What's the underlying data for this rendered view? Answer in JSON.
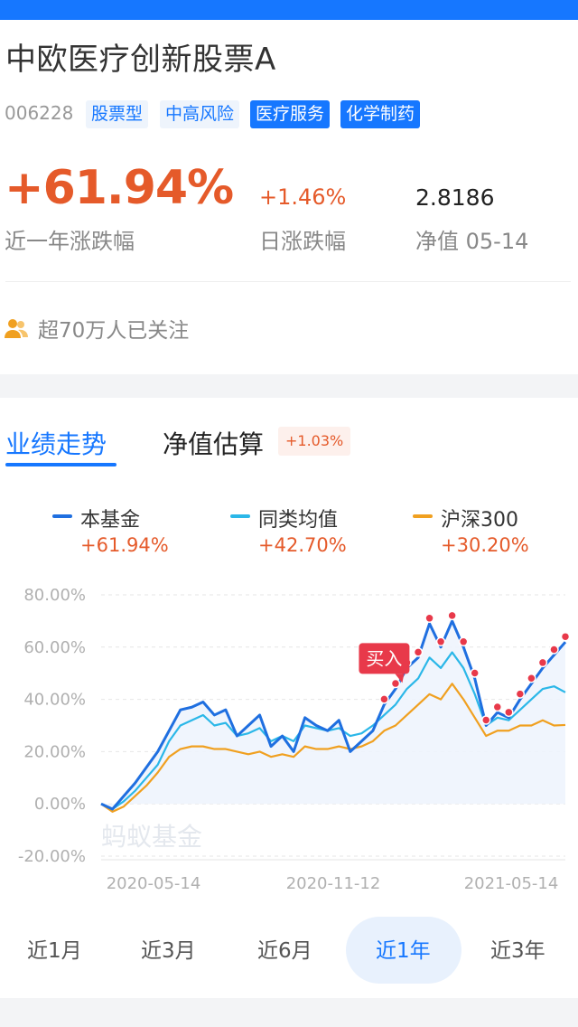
{
  "fund": {
    "name": "中欧医疗创新股票A",
    "code": "006228",
    "tags": [
      "股票型",
      "中高风险",
      "医疗服务",
      "化学制药"
    ]
  },
  "stats": {
    "year_return": "+61.94%",
    "year_return_label": "近一年涨跌幅",
    "day_return": "+1.46%",
    "day_return_label": "日涨跌幅",
    "nav": "2.8186",
    "nav_label": "净值 05-14"
  },
  "followers": "超70万人已关注",
  "tabs": {
    "performance": "业绩走势",
    "estimate": "净值估算",
    "estimate_badge": "+1.03%"
  },
  "legend": [
    {
      "name": "本基金",
      "value": "+61.94%",
      "color": "#1f6fe0"
    },
    {
      "name": "同类均值",
      "value": "+42.70%",
      "color": "#2bb7e8"
    },
    {
      "name": "沪深300",
      "value": "+30.20%",
      "color": "#f0a020"
    }
  ],
  "chart_data": {
    "type": "line",
    "y_ticks": [
      "80.00%",
      "60.00%",
      "40.00%",
      "20.00%",
      "0.00%",
      "-20.00%"
    ],
    "x_ticks": [
      "2020-05-14",
      "2020-11-12",
      "2021-05-14"
    ],
    "ylim": [
      -20,
      80
    ],
    "watermark": "蚂蚁基金",
    "buy_marker": "买入",
    "series": [
      {
        "name": "本基金",
        "color": "#1f6fe0",
        "values": [
          0,
          -2,
          3,
          8,
          14,
          20,
          28,
          36,
          37,
          39,
          34,
          36,
          26,
          30,
          34,
          22,
          26,
          20,
          33,
          30,
          28,
          32,
          20,
          24,
          28,
          38,
          44,
          52,
          56,
          69,
          60,
          70,
          60,
          48,
          30,
          35,
          33,
          40,
          46,
          52,
          57,
          61.94
        ]
      },
      {
        "name": "同类均值",
        "color": "#2bb7e8",
        "values": [
          0,
          -2,
          1,
          5,
          10,
          15,
          24,
          30,
          32,
          34,
          30,
          31,
          26,
          27,
          29,
          24,
          26,
          24,
          30,
          29,
          28,
          29,
          26,
          27,
          30,
          34,
          38,
          44,
          48,
          56,
          52,
          58,
          52,
          42,
          30,
          33,
          32,
          36,
          40,
          44,
          45,
          42.7
        ]
      },
      {
        "name": "沪深300",
        "color": "#f0a020",
        "values": [
          0,
          -3,
          -1,
          3,
          7,
          12,
          18,
          21,
          22,
          22,
          21,
          21,
          20,
          19,
          20,
          18,
          19,
          18,
          22,
          21,
          21,
          22,
          21,
          22,
          24,
          28,
          30,
          34,
          38,
          42,
          40,
          46,
          40,
          33,
          26,
          28,
          28,
          30,
          30,
          32,
          30,
          30.2
        ]
      }
    ],
    "buy_points": [
      25,
      26,
      27,
      28,
      29,
      30,
      31,
      32,
      33,
      34,
      35,
      36,
      37,
      38,
      39,
      40,
      41
    ]
  },
  "ranges": [
    "近1月",
    "近3月",
    "近6月",
    "近1年",
    "近3年"
  ],
  "active_range": "近1年",
  "colors": {
    "accent": "#1677ff",
    "up": "#e55a2a"
  }
}
